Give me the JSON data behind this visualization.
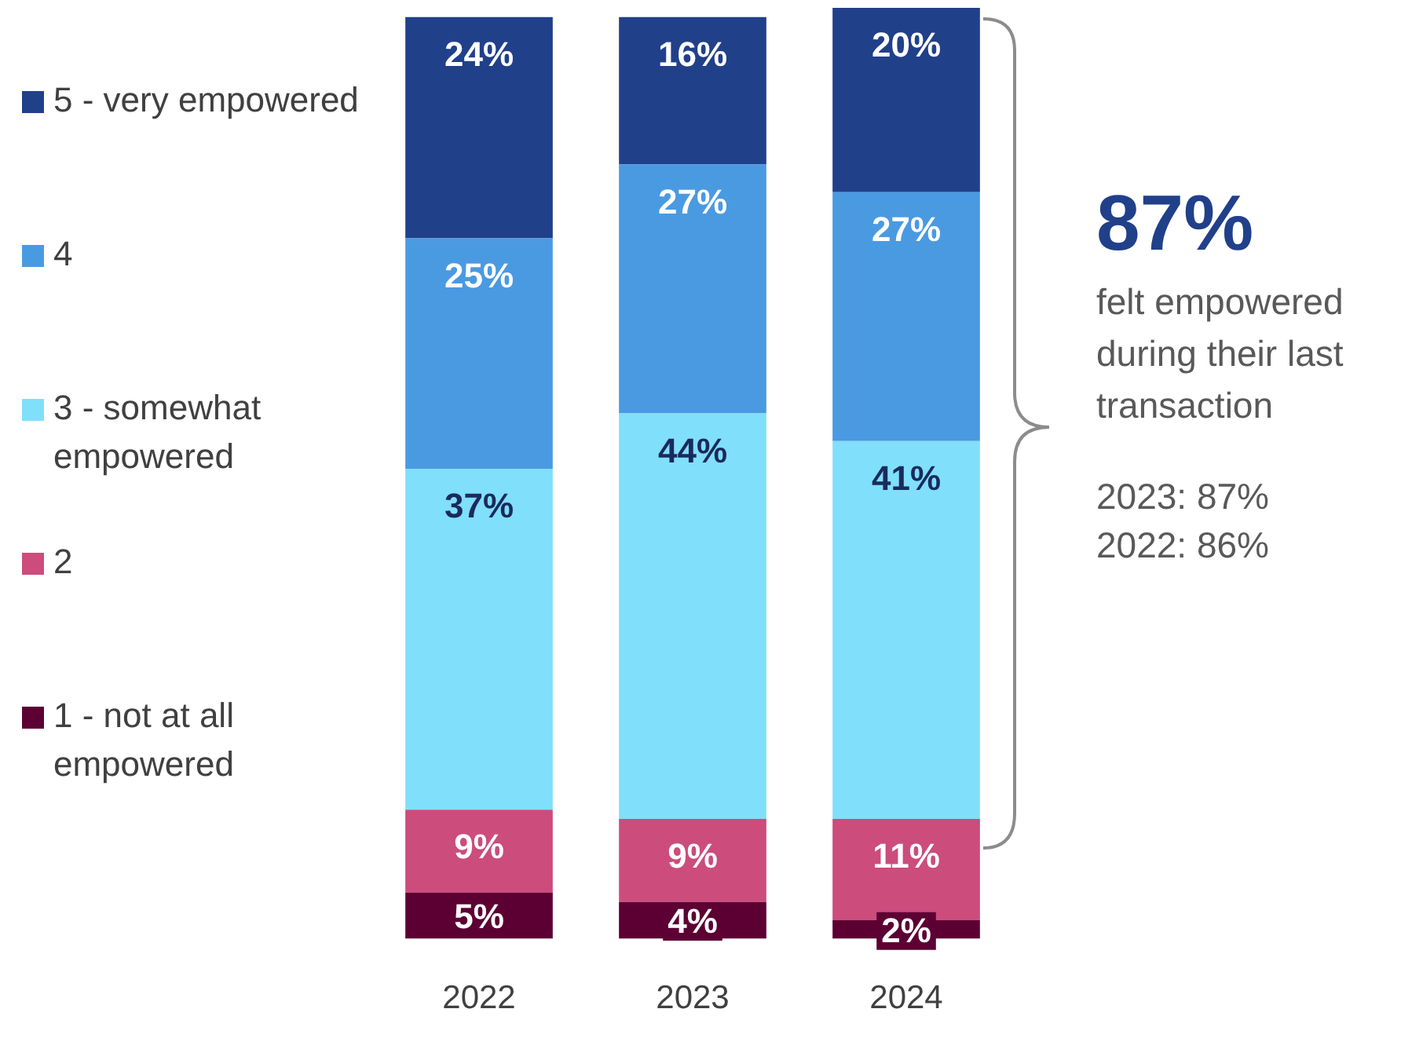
{
  "chart_data": {
    "type": "bar",
    "stacked": true,
    "categories": [
      "2022",
      "2023",
      "2024"
    ],
    "series": [
      {
        "name": "1 - not at all empowered",
        "color": "#5c0033",
        "values": [
          5,
          4,
          2
        ],
        "value_labels": [
          "5%",
          "4%",
          "2%"
        ]
      },
      {
        "name": "2",
        "color": "#cc4c7c",
        "values": [
          9,
          9,
          11
        ],
        "value_labels": [
          "9%",
          "9%",
          "11%"
        ]
      },
      {
        "name": "3 - somewhat empowered",
        "color": "#80dffa",
        "values": [
          37,
          44,
          41
        ],
        "value_labels": [
          "37%",
          "44%",
          "41%"
        ]
      },
      {
        "name": "4",
        "color": "#4a9ae2",
        "values": [
          25,
          27,
          27
        ],
        "value_labels": [
          "25%",
          "27%",
          "27%"
        ]
      },
      {
        "name": "5 - very empowered",
        "color": "#21408a",
        "values": [
          24,
          16,
          20
        ],
        "value_labels": [
          "24%",
          "16%",
          "20%"
        ]
      }
    ],
    "legend": "left",
    "grid": false,
    "tick_labels": "x",
    "annotations": [
      "87%",
      "felt empowered during their last transaction",
      "2023: 87%",
      "2022: 86%"
    ]
  }
}
